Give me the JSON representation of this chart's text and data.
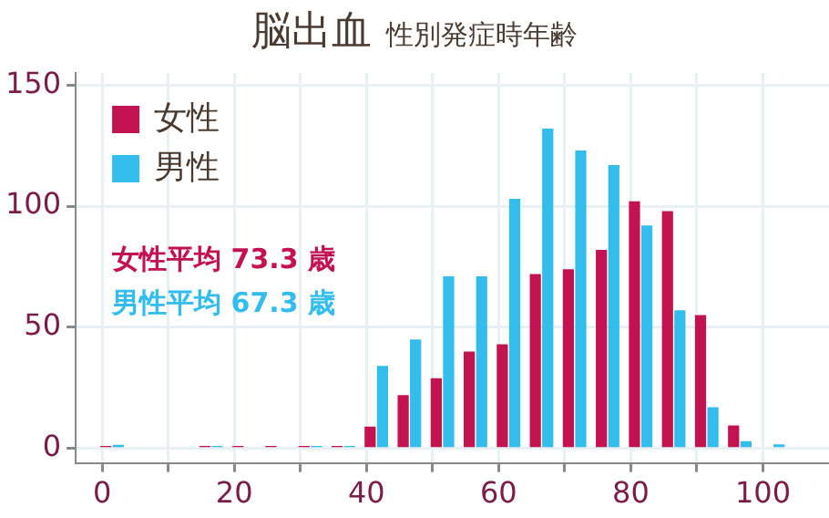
{
  "chart_data": {
    "type": "bar",
    "title": "脳出血",
    "subtitle": "性別発症時年齢",
    "x": [
      1.5,
      16.5,
      21.5,
      26.5,
      31.5,
      36.5,
      41.5,
      46.5,
      51.5,
      56.5,
      61.5,
      66.5,
      71.5,
      76.5,
      81.5,
      86.5,
      91.5,
      96.5,
      101.5
    ],
    "series": [
      {
        "name": "女性",
        "color": "#c2124f",
        "values": [
          1,
          1,
          1,
          1,
          1,
          1,
          9,
          22,
          29,
          40,
          43,
          72,
          74,
          82,
          102,
          98,
          55,
          9.5,
          null
        ]
      },
      {
        "name": "男性",
        "color": "#33bdec",
        "values": [
          1.5,
          1,
          null,
          null,
          1,
          1,
          34,
          45,
          71,
          71,
          103,
          132,
          123,
          117,
          92,
          57,
          17,
          3,
          1.7
        ]
      }
    ],
    "annotations": [
      "女性平均 73.3 歳",
      "男性平均 67.3 歳"
    ],
    "xlim": [
      -4,
      110
    ],
    "xticks": [
      0,
      {
        "value": 10,
        "label": null
      },
      20,
      {
        "value": 30,
        "label": null
      },
      40,
      {
        "value": 50,
        "label": null
      },
      60,
      {
        "value": 70,
        "label": null
      },
      80,
      {
        "value": 90,
        "label": null
      },
      100
    ],
    "ylim": [
      -6,
      155
    ],
    "yticks": [
      0,
      50,
      100,
      150
    ],
    "grid": true,
    "legend": "top left"
  }
}
